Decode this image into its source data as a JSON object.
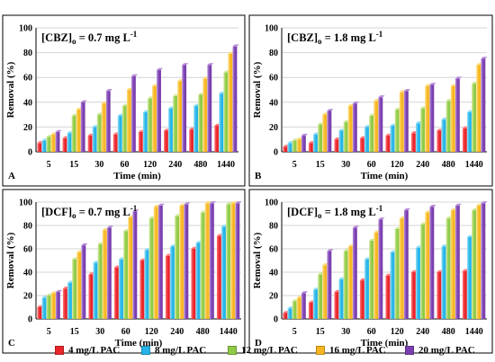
{
  "chart_data": [
    {
      "type": "bar",
      "panel_letter": "A",
      "title": "[CBZ]o = 0.7 mg L-1",
      "title_main": "[CBZ]",
      "title_sub": "o",
      "title_rest": " = 0.7 mg L",
      "title_sup": "-1",
      "xlabel": "Time (min)",
      "ylabel": "Removal (%)",
      "ylim": [
        0,
        100
      ],
      "yticks": [
        "0",
        "20",
        "40",
        "60",
        "80",
        "100"
      ],
      "categories": [
        "5",
        "15",
        "30",
        "60",
        "120",
        "240",
        "480",
        "1440"
      ],
      "series": [
        {
          "name": "4 mg/L PAC",
          "values": [
            7,
            11,
            13,
            14,
            16,
            17,
            18,
            21
          ]
        },
        {
          "name": "8 mg/L PAC",
          "values": [
            9,
            15,
            20,
            29,
            32,
            35,
            37,
            47
          ]
        },
        {
          "name": "12 mg/L PAC",
          "values": [
            12,
            29,
            30,
            37,
            43,
            45,
            46,
            64
          ]
        },
        {
          "name": "16 mg/L PAC",
          "values": [
            14,
            34,
            39,
            50,
            53,
            57,
            59,
            79
          ]
        },
        {
          "name": "20 mg/L PAC",
          "values": [
            16,
            40,
            49,
            61,
            66,
            70,
            70,
            85
          ]
        }
      ]
    },
    {
      "type": "bar",
      "panel_letter": "B",
      "title": "[CBZ]o = 1.8 mg L-1",
      "title_main": "[CBZ]",
      "title_sub": "o",
      "title_rest": " = 1.8 mg L",
      "title_sup": "-1",
      "xlabel": "Time (min)",
      "ylabel": "Removal (%)",
      "ylim": [
        0,
        100
      ],
      "yticks": [
        "0",
        "20",
        "40",
        "60",
        "80",
        "100"
      ],
      "categories": [
        "5",
        "15",
        "30",
        "60",
        "120",
        "240",
        "480",
        "1440"
      ],
      "series": [
        {
          "name": "4 mg/L PAC",
          "values": [
            4,
            7,
            10,
            11,
            13,
            15,
            17,
            19
          ]
        },
        {
          "name": "8 mg/L PAC",
          "values": [
            7,
            14,
            17,
            20,
            21,
            23,
            26,
            32
          ]
        },
        {
          "name": "12 mg/L PAC",
          "values": [
            9,
            22,
            24,
            29,
            34,
            35,
            41,
            55
          ]
        },
        {
          "name": "16 mg/L PAC",
          "values": [
            10,
            30,
            37,
            41,
            48,
            53,
            53,
            70
          ]
        },
        {
          "name": "20 mg/L PAC",
          "values": [
            13,
            33,
            39,
            44,
            49,
            54,
            59,
            75
          ]
        }
      ]
    },
    {
      "type": "bar",
      "panel_letter": "C",
      "title": "[DCF]o = 0.7 mg L-1",
      "title_main": "[DCF]",
      "title_sub": "o",
      "title_rest": " = 0.7 mg L",
      "title_sup": "-1",
      "xlabel": "Time (min)",
      "ylabel": "Removal (%)",
      "ylim": [
        0,
        100
      ],
      "yticks": [
        "0",
        "20",
        "40",
        "60",
        "80",
        "100"
      ],
      "categories": [
        "5",
        "15",
        "30",
        "60",
        "120",
        "240",
        "480",
        "1440"
      ],
      "series": [
        {
          "name": "4 mg/L PAC",
          "values": [
            10,
            26,
            38,
            44,
            50,
            54,
            60,
            71
          ]
        },
        {
          "name": "8 mg/L PAC",
          "values": [
            18,
            31,
            48,
            51,
            59,
            62,
            65,
            79
          ]
        },
        {
          "name": "12 mg/L PAC",
          "values": [
            20,
            51,
            64,
            75,
            86,
            88,
            91,
            98
          ]
        },
        {
          "name": "16 mg/L PAC",
          "values": [
            22,
            57,
            76,
            87,
            96,
            97,
            99,
            99
          ]
        },
        {
          "name": "20 mg/L PAC",
          "values": [
            23,
            63,
            78,
            92,
            97,
            98,
            99,
            99
          ]
        }
      ]
    },
    {
      "type": "bar",
      "panel_letter": "D",
      "title": "[DCF]o = 1.8 mg L-1",
      "title_main": "[DCF]",
      "title_sub": "o",
      "title_rest": " = 1.8 mg L",
      "title_sup": "-1",
      "xlabel": "Time (min)",
      "ylabel": "Removal (%)",
      "ylim": [
        0,
        100
      ],
      "yticks": [
        "0",
        "20",
        "40",
        "60",
        "80",
        "100"
      ],
      "categories": [
        "5",
        "15",
        "30",
        "60",
        "120",
        "240",
        "480",
        "1440"
      ],
      "series": [
        {
          "name": "4 mg/L PAC",
          "values": [
            5,
            14,
            23,
            33,
            37,
            40,
            40,
            41
          ]
        },
        {
          "name": "8 mg/L PAC",
          "values": [
            9,
            25,
            34,
            51,
            57,
            61,
            62,
            70
          ]
        },
        {
          "name": "12 mg/L PAC",
          "values": [
            15,
            38,
            58,
            67,
            77,
            81,
            86,
            93
          ]
        },
        {
          "name": "16 mg/L PAC",
          "values": [
            18,
            46,
            62,
            74,
            86,
            91,
            93,
            97
          ]
        },
        {
          "name": "20 mg/L PAC",
          "values": [
            22,
            58,
            78,
            85,
            93,
            96,
            97,
            99
          ]
        }
      ]
    }
  ],
  "legend": [
    {
      "label": "4 mg/L PAC",
      "color": "#e8252a"
    },
    {
      "label": "8 mg/L PAC",
      "color": "#25b4e8"
    },
    {
      "label": "12 mg/L PAC",
      "color": "#8fcb47"
    },
    {
      "label": "16 mg/L PAC",
      "color": "#f7b621"
    },
    {
      "label": "20 mg/L PAC",
      "color": "#7a3fb0"
    }
  ],
  "colors": {
    "series_light": [
      "#ff7b7e",
      "#8fdcf8",
      "#cfe99a",
      "#ffdd7a",
      "#b58bd8"
    ],
    "grid": "#d4d4d4",
    "axis": "#000000"
  }
}
